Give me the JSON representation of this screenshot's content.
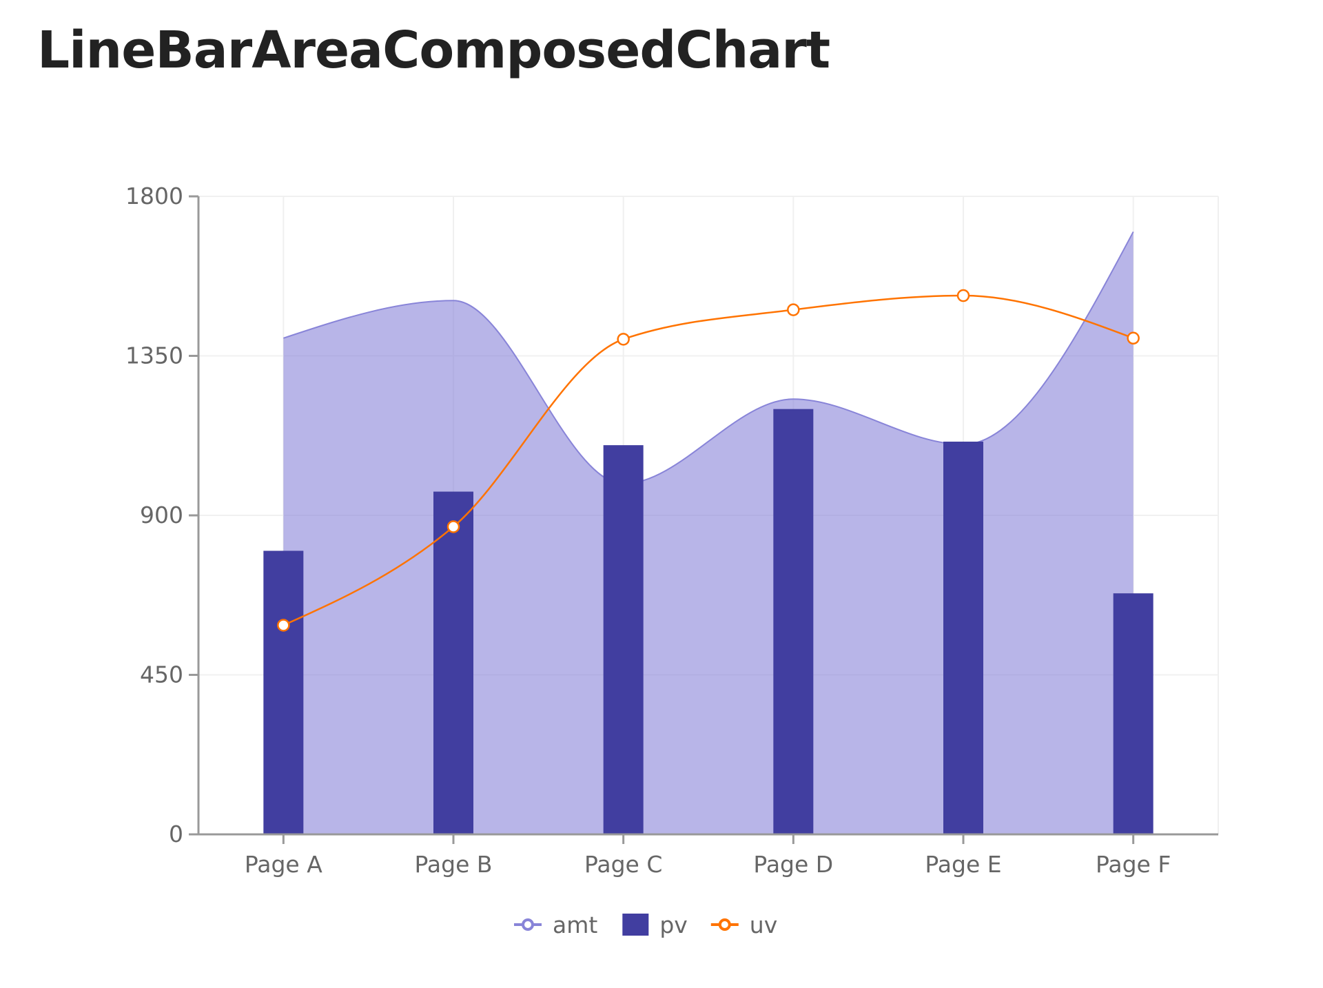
{
  "title": "LineBarAreaComposedChart",
  "colors": {
    "amt_fill": "#8884d8",
    "amt_stroke": "#8884d8",
    "pv_fill": "#413ea0",
    "uv_stroke": "#ff7300",
    "grid": "#f0f0f0",
    "axis": "#999999"
  },
  "legend": [
    {
      "key": "amt",
      "label": "amt",
      "icon": "line-circle-icon"
    },
    {
      "key": "pv",
      "label": "pv",
      "icon": "square-icon"
    },
    {
      "key": "uv",
      "label": "uv",
      "icon": "line-circle-icon"
    }
  ],
  "chart_data": {
    "type": "composed",
    "title": "LineBarAreaComposedChart",
    "categories": [
      "Page A",
      "Page B",
      "Page C",
      "Page D",
      "Page E",
      "Page F"
    ],
    "series": [
      {
        "name": "amt",
        "type": "area",
        "curve": "monotone",
        "values": [
          1400,
          1506,
          989,
          1228,
          1100,
          1700
        ]
      },
      {
        "name": "pv",
        "type": "bar",
        "values": [
          800,
          967,
          1098,
          1200,
          1108,
          680
        ]
      },
      {
        "name": "uv",
        "type": "line",
        "curve": "monotone",
        "values": [
          590,
          868,
          1397,
          1480,
          1520,
          1400
        ]
      }
    ],
    "xlabel": "",
    "ylabel": "",
    "ylim": [
      0,
      1800
    ],
    "yticks": [
      0,
      450,
      900,
      1350,
      1800
    ],
    "grid": true,
    "legend_position": "bottom"
  }
}
